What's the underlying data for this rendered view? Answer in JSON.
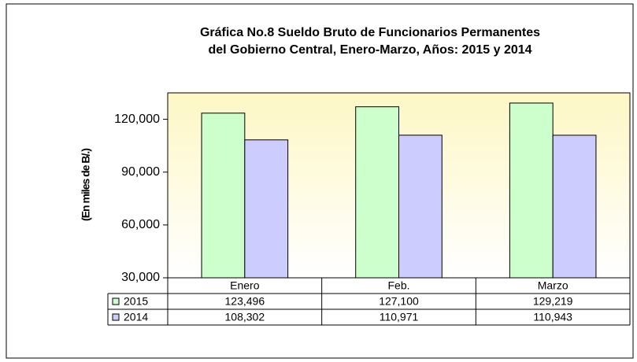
{
  "chart_data": {
    "type": "bar",
    "title": [
      "Gráfica No.8 Sueldo Bruto de Funcionarios Permanentes",
      "del Gobierno Central, Enero-Marzo, Años: 2015 y 2014"
    ],
    "y_label": "(En miles de B/.)",
    "categories": [
      "Enero",
      "Feb.",
      "Marzo"
    ],
    "series": [
      {
        "name": "2015",
        "color": "#ccffcc",
        "values": [
          123496,
          127100,
          129219
        ],
        "value_labels": [
          "123,496",
          "127,100",
          "129,219"
        ]
      },
      {
        "name": "2014",
        "color": "#ccccff",
        "values": [
          108302,
          110971,
          110943
        ],
        "value_labels": [
          "108,302",
          "110,971",
          "110,943"
        ]
      }
    ],
    "ylim": [
      30000,
      135000
    ],
    "yticks": [
      {
        "value": 30000,
        "label": "30,000"
      },
      {
        "value": 60000,
        "label": "60,000"
      },
      {
        "value": 90000,
        "label": "90,000"
      },
      {
        "value": 120000,
        "label": "120,000"
      }
    ],
    "grid": false
  }
}
